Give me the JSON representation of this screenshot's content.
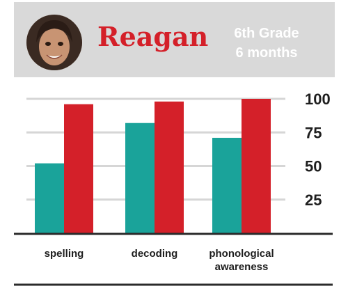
{
  "profile": {
    "name": "Reagan",
    "grade": "6th Grade",
    "duration": "6 months"
  },
  "colors": {
    "before": "#1aa39a",
    "after": "#d42029",
    "header_bg": "#d9d9d9",
    "grid": "#d6d6d6",
    "axis": "#2b2b2b"
  },
  "chart_data": {
    "type": "bar",
    "categories": [
      "spelling",
      "decoding",
      "phonological\nawareness"
    ],
    "series": [
      {
        "values": [
          52,
          82,
          71
        ]
      },
      {
        "values": [
          96,
          98,
          100
        ]
      }
    ],
    "yticks": [
      25,
      50,
      75,
      100
    ],
    "ylim": [
      0,
      100
    ],
    "grid": true,
    "legend": "none",
    "title": "",
    "xlabel": "",
    "ylabel": ""
  }
}
